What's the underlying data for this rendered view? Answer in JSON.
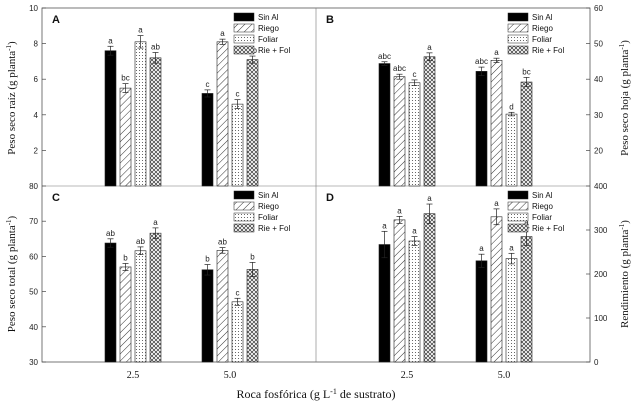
{
  "xaxis_title": "Roca fosfórica (g L-1 de sustrato)",
  "xaxis_title_parts": {
    "main": "Roca fosfórica (g L",
    "sup": "-1",
    "tail": " de sustrato)"
  },
  "ylabels": {
    "left_top": {
      "main": "Peso seco raíz (g planta",
      "sup": "-1",
      "tail": ")"
    },
    "right_top": {
      "main": "Peso seco hoja (g planta",
      "sup": "-1",
      "tail": ")"
    },
    "left_bottom": {
      "main": "Peso seco total (g planta",
      "sup": "-1",
      "tail": ")"
    },
    "right_bottom": {
      "main": "Rendimiento (g planta",
      "sup": "-1",
      "tail": ")"
    }
  },
  "chart_data": [
    {
      "panel": "A",
      "type": "bar",
      "ylim": [
        0,
        10
      ],
      "yticks": [
        2,
        4,
        6,
        8,
        10
      ],
      "ylabel": "Peso seco raíz (g planta-1)",
      "axis_side": "left",
      "categories": [
        "2.5",
        "5.0"
      ],
      "series": [
        {
          "name": "Sin Al",
          "values": [
            7.6,
            5.2
          ],
          "errors": [
            0.25,
            0.2
          ],
          "letters": [
            "a",
            "c"
          ]
        },
        {
          "name": "Riego",
          "values": [
            5.5,
            8.1
          ],
          "errors": [
            0.25,
            0.15
          ],
          "letters": [
            "bc",
            "a"
          ]
        },
        {
          "name": "Foliar",
          "values": [
            8.1,
            4.6
          ],
          "errors": [
            0.35,
            0.25
          ],
          "letters": [
            "a",
            "c"
          ]
        },
        {
          "name": "Rie + Fol",
          "values": [
            7.2,
            7.1
          ],
          "errors": [
            0.3,
            0.2
          ],
          "letters": [
            "ab",
            "ab"
          ]
        }
      ]
    },
    {
      "panel": "B",
      "type": "bar",
      "ylim": [
        10,
        60
      ],
      "yticks": [
        20,
        30,
        40,
        50,
        60
      ],
      "ylabel": "Peso seco hoja (g planta-1)",
      "axis_side": "right",
      "categories": [
        "2.5",
        "5.0"
      ],
      "series": [
        {
          "name": "Sin Al",
          "values": [
            44.4,
            42.2
          ],
          "errors": [
            0.5,
            1.2
          ],
          "letters": [
            "abc",
            "abc"
          ]
        },
        {
          "name": "Riego",
          "values": [
            40.7,
            45.3
          ],
          "errors": [
            0.7,
            0.6
          ],
          "letters": [
            "abc",
            "a"
          ]
        },
        {
          "name": "Foliar",
          "values": [
            39,
            30.2
          ],
          "errors": [
            0.8,
            0.5
          ],
          "letters": [
            "c",
            "d"
          ]
        },
        {
          "name": "Rie + Fol",
          "values": [
            46.3,
            39.2
          ],
          "errors": [
            1.1,
            1.3
          ],
          "letters": [
            "a",
            "bc"
          ]
        }
      ]
    },
    {
      "panel": "C",
      "type": "bar",
      "ylim": [
        30,
        80
      ],
      "yticks": [
        30,
        40,
        50,
        60,
        70,
        80
      ],
      "ylabel": "Peso seco total (g planta-1)",
      "axis_side": "left",
      "categories": [
        "2.5",
        "5.0"
      ],
      "series": [
        {
          "name": "Sin Al",
          "values": [
            63.8,
            56.2
          ],
          "errors": [
            1.2,
            1.5
          ],
          "letters": [
            "ab",
            "b"
          ]
        },
        {
          "name": "Riego",
          "values": [
            57,
            61.7
          ],
          "errors": [
            1.0,
            0.8
          ],
          "letters": [
            "b",
            "ab"
          ]
        },
        {
          "name": "Foliar",
          "values": [
            61.6,
            47.1
          ],
          "errors": [
            1.1,
            1.0
          ],
          "letters": [
            "ab",
            "c"
          ]
        },
        {
          "name": "Rie + Fol",
          "values": [
            66.6,
            56.3
          ],
          "errors": [
            1.5,
            2.0
          ],
          "letters": [
            "a",
            "b"
          ]
        }
      ]
    },
    {
      "panel": "D",
      "type": "bar",
      "ylim": [
        0,
        400
      ],
      "yticks": [
        0,
        100,
        200,
        300,
        400
      ],
      "ylabel": "Rendimiento (g planta-1)",
      "axis_side": "right",
      "categories": [
        "2.5",
        "5.0"
      ],
      "series": [
        {
          "name": "Sin Al",
          "values": [
            267,
            230
          ],
          "errors": [
            30,
            15
          ],
          "letters": [
            "a",
            "a"
          ]
        },
        {
          "name": "Riego",
          "values": [
            323,
            330
          ],
          "errors": [
            8,
            18
          ],
          "letters": [
            "a",
            "a"
          ]
        },
        {
          "name": "Foliar",
          "values": [
            275,
            235
          ],
          "errors": [
            10,
            12
          ],
          "letters": [
            "a",
            "a"
          ]
        },
        {
          "name": "Rie + Fol",
          "values": [
            337,
            285
          ],
          "errors": [
            22,
            20
          ],
          "letters": [
            "a",
            "a"
          ]
        }
      ]
    }
  ]
}
